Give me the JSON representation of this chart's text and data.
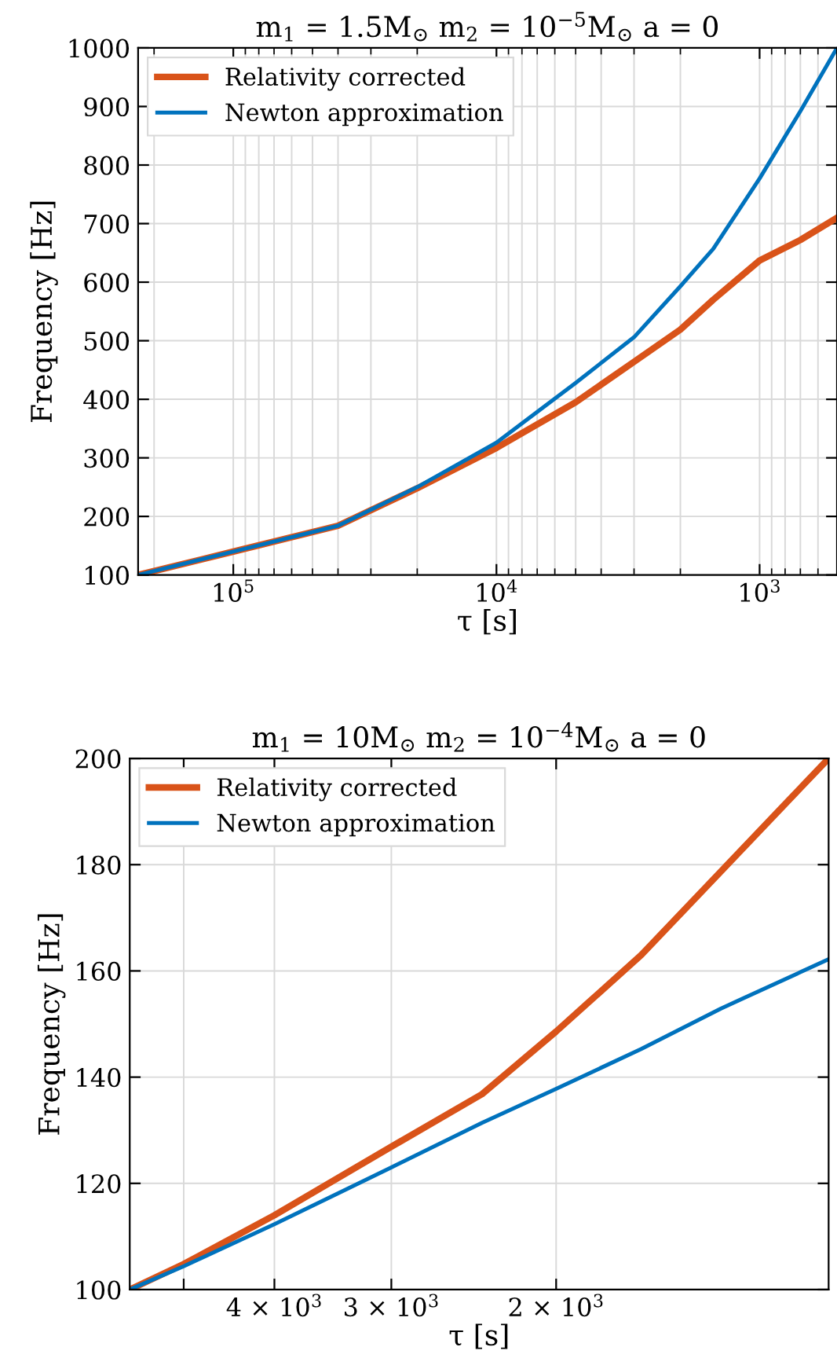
{
  "chart_data": [
    {
      "type": "line",
      "title": "m$_{1}$ = 1.5M$_{⊙}$ m$_{2}$ = 10$^{−5}$M$_{⊙}$ a = 0",
      "xlabel": "τ [s]",
      "ylabel": "Frequency [Hz]",
      "log": "x",
      "grid": true,
      "legend": "top left",
      "xlim": [
        230000,
        508
      ],
      "xticks": [
        {
          "value": 100000,
          "label": "10$^{5}$"
        },
        {
          "value": 10000,
          "label": "10$^{4}$"
        },
        {
          "value": 1000,
          "label": "10$^{3}$"
        }
      ],
      "ylim": [
        100,
        1000
      ],
      "yticks": [
        100,
        200,
        300,
        400,
        500,
        600,
        700,
        800,
        900,
        1000
      ],
      "series": [
        {
          "name": "Relativity corrected",
          "color": "#d95319",
          "x": [
            230000,
            100000,
            40000,
            20000,
            10000,
            5000,
            3000,
            2000,
            1500,
            1000,
            700,
            508
          ],
          "values": [
            100,
            140,
            184,
            248,
            317,
            395,
            464,
            519,
            570,
            637,
            672,
            710
          ]
        },
        {
          "name": "Newton approximation",
          "color": "#0072bd",
          "x": [
            230000,
            100000,
            40000,
            20000,
            10000,
            5000,
            3000,
            2000,
            1500,
            1000,
            700,
            508
          ],
          "values": [
            100,
            140,
            184,
            250,
            326,
            428,
            506,
            593,
            657,
            777,
            892,
            1000
          ]
        }
      ]
    },
    {
      "type": "line",
      "title": "m$_{1}$ = 10M$_{⊙}$ m$_{2}$ = 10$^{−4}$M$_{⊙}$ a = 0",
      "xlabel": "τ [s]",
      "ylabel": "Frequency [Hz]",
      "log": "x",
      "grid": true,
      "legend": "top left",
      "xlim": [
        5710,
        1023
      ],
      "xticks": [
        {
          "value": 5000,
          "label": null
        },
        {
          "value": 4000,
          "label": "4 × 10$^{3}$"
        },
        {
          "value": 3000,
          "label": "3 × 10$^{3}$"
        },
        {
          "value": 2000,
          "label": "2 × 10$^{3}$"
        }
      ],
      "ylim": [
        100,
        200
      ],
      "yticks": [
        100,
        120,
        140,
        160,
        180,
        200
      ],
      "series": [
        {
          "name": "Relativity corrected",
          "color": "#d95319",
          "x": [
            5710,
            5000,
            4000,
            3000,
            2400,
            2000,
            1622,
            1334,
            1023
          ],
          "values": [
            100,
            104.8,
            114,
            126.9,
            136.8,
            148.6,
            163,
            178.7,
            200
          ]
        },
        {
          "name": "Newton approximation",
          "color": "#0072bd",
          "x": [
            5710,
            5000,
            4000,
            3000,
            2400,
            2000,
            1622,
            1334,
            1023
          ],
          "values": [
            100,
            104.4,
            112.3,
            123,
            131.4,
            137.8,
            145.3,
            152.9,
            162.2
          ]
        }
      ]
    }
  ]
}
